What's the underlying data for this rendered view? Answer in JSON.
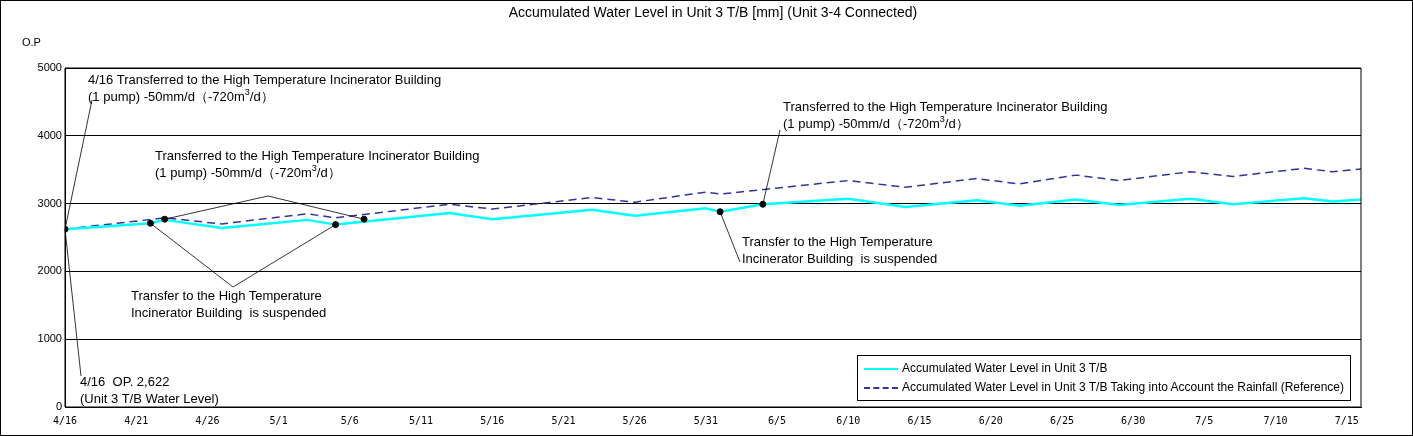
{
  "chart_data": {
    "type": "line",
    "title": "Accumulated Water Level in Unit 3 T/B [mm] (Unit 3-4 Connected)",
    "ylabel": "O.P",
    "xlim": [
      "--04-16",
      "--07-16"
    ],
    "xticks": [
      {
        "value": "--04-16",
        "label": "4/16"
      },
      {
        "value": "--04-21",
        "label": "4/21"
      },
      {
        "value": "--04-26",
        "label": "4/26"
      },
      {
        "value": "--05-01",
        "label": "5/1"
      },
      {
        "value": "--05-06",
        "label": "5/6"
      },
      {
        "value": "--05-11",
        "label": "5/11"
      },
      {
        "value": "--05-16",
        "label": "5/16"
      },
      {
        "value": "--05-21",
        "label": "5/21"
      },
      {
        "value": "--05-26",
        "label": "5/26"
      },
      {
        "value": "--05-31",
        "label": "5/31"
      },
      {
        "value": "--06-05",
        "label": "6/5"
      },
      {
        "value": "--06-10",
        "label": "6/10"
      },
      {
        "value": "--06-15",
        "label": "6/15"
      },
      {
        "value": "--06-20",
        "label": "6/20"
      },
      {
        "value": "--06-25",
        "label": "6/25"
      },
      {
        "value": "--06-30",
        "label": "6/30"
      },
      {
        "value": "--07-05",
        "label": "7/5"
      },
      {
        "value": "--07-10",
        "label": "7/10"
      },
      {
        "value": "--07-15",
        "label": "7/15"
      }
    ],
    "ylim": [
      0,
      5000
    ],
    "yticks": [
      0,
      1000,
      2000,
      3000,
      4000,
      5000
    ],
    "grid": "y",
    "legend": "bottom right",
    "series": [
      {
        "name": "Accumulated Water Level in Unit 3 T/B",
        "color": "#00ffff",
        "line_style": "solid",
        "marker": "none",
        "x": [
          "--04-16",
          "--04-22",
          "--04-23",
          "--04-27",
          "--05-03",
          "--05-05",
          "--05-13",
          "--05-16",
          "--05-23",
          "--05-26",
          "--05-31",
          "--06-01",
          "--06-04",
          "--06-10",
          "--06-14",
          "--06-19",
          "--06-22",
          "--06-26",
          "--06-29",
          "--07-04",
          "--07-07",
          "--07-12",
          "--07-14",
          "--07-16"
        ],
        "values": [
          2622,
          2710,
          2760,
          2640,
          2760,
          2690,
          2860,
          2770,
          2910,
          2820,
          2930,
          2880,
          2990,
          3070,
          2950,
          3050,
          2970,
          3060,
          2980,
          3070,
          2990,
          3080,
          3030,
          3060
        ]
      },
      {
        "name": "Accumulated Water Level in Unit 3 T/B Taking into Account the Rainfall (Reference)",
        "color": "#333399",
        "line_style": "dashed",
        "marker": "none",
        "x": [
          "--04-16",
          "--04-23",
          "--04-27",
          "--05-03",
          "--05-05",
          "--05-13",
          "--05-16",
          "--05-23",
          "--05-26",
          "--05-31",
          "--06-01",
          "--06-10",
          "--06-14",
          "--06-19",
          "--06-22",
          "--06-26",
          "--06-29",
          "--07-04",
          "--07-07",
          "--07-12",
          "--07-14",
          "--07-16"
        ],
        "values": [
          2622,
          2790,
          2700,
          2850,
          2790,
          2990,
          2920,
          3090,
          3020,
          3170,
          3140,
          3340,
          3240,
          3370,
          3290,
          3420,
          3340,
          3470,
          3400,
          3520,
          3470,
          3510
        ]
      },
      {
        "type": "scatter",
        "color": "#000000",
        "marker": "circle",
        "x": [
          "--04-16",
          "--04-22",
          "--04-23",
          "--05-05",
          "--05-07",
          "--06-01",
          "--06-04"
        ],
        "values": [
          2622,
          2710,
          2770,
          2690,
          2770,
          2880,
          2990
        ]
      }
    ],
    "annotations": [
      {
        "text": "4/16 Transferred to the High Temperature Incinerator Building\n(1 pump) -50mm/d（-720m$^{3}$/d）",
        "x": "--04-16",
        "y": 2622
      },
      {
        "text": "Transferred to the High Temperature Incinerator Building\n(1 pump) -50mm/d（-720m$^{3}$/d）",
        "x": "--04-23",
        "y": 2770
      },
      {
        "text": "Transfer to the High Temperature\nIncinerator Building  is suspended",
        "x": "--04-22",
        "y": 2710
      },
      {
        "text": "Transferred to the High Temperature Incinerator Building\n(1 pump) -50mm/d（-720m$^{3}$/d）",
        "x": "--06-04",
        "y": 2990
      },
      {
        "text": "Transfer to the High Temperature\nIncinerator Building  is suspended",
        "x": "--06-01",
        "y": 2880
      },
      {
        "text": "4/16  OP. 2,622\n(Unit 3 T/B Water Level)",
        "x": "--04-16",
        "y": 2622
      }
    ]
  }
}
